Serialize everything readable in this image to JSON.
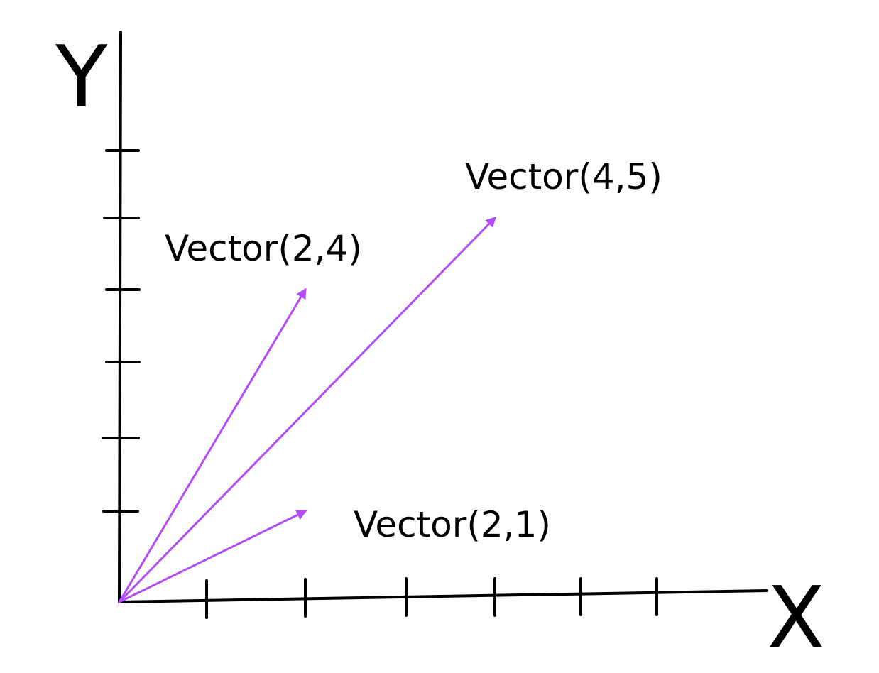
{
  "axes": {
    "x_label": "X",
    "y_label": "Y"
  },
  "vector_color": "#b14cf6",
  "vectors": [
    {
      "label": "Vector(2,4)",
      "x": 2,
      "y": 4
    },
    {
      "label": "Vector(4,5)",
      "x": 4,
      "y": 5
    },
    {
      "label": "Vector(2,1)",
      "x": 2,
      "y": 1
    }
  ]
}
